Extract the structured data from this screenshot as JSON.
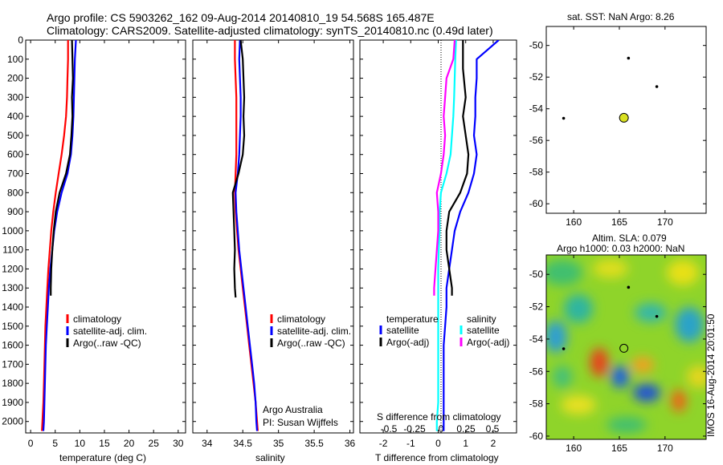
{
  "header": {
    "line1": "Argo profile: CS 5903262_162 09-Aug-2014 20140810_19 54.568S 165.487E",
    "line2": "Climatology: CARS2009. Satellite-adjusted climatology: synTS_20140810.nc (0.49d later)"
  },
  "colors": {
    "climatology": "#ff0000",
    "satellite": "#0000ff",
    "argo": "#000000",
    "satellite_salinity": "#00ffff",
    "argo_salinity": "#ff00ff",
    "marker": "#d9e021"
  },
  "chart_data": [
    {
      "id": "temperature",
      "type": "line",
      "xlabel": "temperature (deg C)",
      "ylabel": "",
      "xlim": [
        -1,
        31.5
      ],
      "ylim": [
        2060,
        0
      ],
      "xticks": [
        0,
        5,
        10,
        15,
        20,
        25,
        30
      ],
      "yticks": [
        0,
        100,
        200,
        300,
        400,
        500,
        600,
        700,
        800,
        900,
        1000,
        1100,
        1200,
        1300,
        1400,
        1500,
        1600,
        1700,
        1800,
        1900,
        2000
      ],
      "legend": [
        "climatology",
        "satellite-adj. clim.",
        "Argo(..raw -QC)"
      ],
      "series": [
        {
          "name": "climatology",
          "color": "#ff0000",
          "points": [
            [
              7.6,
              0
            ],
            [
              7.6,
              100
            ],
            [
              7.5,
              200
            ],
            [
              7.4,
              300
            ],
            [
              7.2,
              400
            ],
            [
              6.8,
              500
            ],
            [
              6.3,
              600
            ],
            [
              5.7,
              700
            ],
            [
              5.1,
              800
            ],
            [
              4.6,
              900
            ],
            [
              4.2,
              1000
            ],
            [
              3.9,
              1100
            ],
            [
              3.6,
              1200
            ],
            [
              3.4,
              1300
            ],
            [
              3.2,
              1400
            ],
            [
              3.0,
              1500
            ],
            [
              2.9,
              1600
            ],
            [
              2.8,
              1700
            ],
            [
              2.7,
              1800
            ],
            [
              2.6,
              1900
            ],
            [
              2.4,
              2000
            ],
            [
              2.3,
              2050
            ]
          ]
        },
        {
          "name": "satellite-adj. clim.",
          "color": "#0000ff",
          "points": [
            [
              9.2,
              0
            ],
            [
              9.0,
              100
            ],
            [
              8.9,
              200
            ],
            [
              8.8,
              300
            ],
            [
              8.7,
              400
            ],
            [
              8.5,
              500
            ],
            [
              8.2,
              600
            ],
            [
              7.5,
              700
            ],
            [
              6.3,
              800
            ],
            [
              5.4,
              900
            ],
            [
              4.8,
              1000
            ],
            [
              4.4,
              1100
            ],
            [
              4.0,
              1200
            ],
            [
              3.7,
              1300
            ],
            [
              3.5,
              1400
            ],
            [
              3.3,
              1500
            ],
            [
              3.1,
              1600
            ],
            [
              3.0,
              1700
            ],
            [
              2.9,
              1800
            ],
            [
              2.8,
              1900
            ],
            [
              2.7,
              2000
            ],
            [
              2.6,
              2050
            ]
          ]
        },
        {
          "name": "Argo(..raw -QC)",
          "color": "#000000",
          "points": [
            [
              8.4,
              0
            ],
            [
              8.5,
              100
            ],
            [
              8.6,
              200
            ],
            [
              8.4,
              300
            ],
            [
              8.5,
              400
            ],
            [
              8.3,
              500
            ],
            [
              8.0,
              600
            ],
            [
              7.2,
              700
            ],
            [
              5.9,
              800
            ],
            [
              5.1,
              900
            ],
            [
              4.7,
              1000
            ],
            [
              4.4,
              1100
            ],
            [
              4.2,
              1200
            ],
            [
              4.1,
              1300
            ],
            [
              4.1,
              1340
            ]
          ]
        }
      ],
      "annotations": []
    },
    {
      "id": "salinity",
      "type": "line",
      "xlabel": "salinity",
      "ylabel": "",
      "xlim": [
        33.8,
        36.05
      ],
      "ylim": [
        2060,
        0
      ],
      "xticks": [
        34,
        34.5,
        35,
        35.5,
        36
      ],
      "xtick_labels": [
        "34",
        "34.5",
        "35",
        "35.5",
        "36"
      ],
      "legend": [
        "climatology",
        "satellite-adj. clim.",
        "Argo(..raw -QC)"
      ],
      "series": [
        {
          "name": "climatology",
          "color": "#ff0000",
          "points": [
            [
              34.39,
              0
            ],
            [
              34.39,
              100
            ],
            [
              34.4,
              200
            ],
            [
              34.41,
              300
            ],
            [
              34.41,
              400
            ],
            [
              34.41,
              500
            ],
            [
              34.41,
              600
            ],
            [
              34.4,
              700
            ],
            [
              34.39,
              800
            ],
            [
              34.4,
              900
            ],
            [
              34.42,
              1000
            ],
            [
              34.44,
              1100
            ],
            [
              34.47,
              1200
            ],
            [
              34.5,
              1300
            ],
            [
              34.53,
              1400
            ],
            [
              34.56,
              1500
            ],
            [
              34.59,
              1600
            ],
            [
              34.62,
              1700
            ],
            [
              34.65,
              1800
            ],
            [
              34.68,
              1900
            ],
            [
              34.7,
              2000
            ],
            [
              34.71,
              2050
            ]
          ]
        },
        {
          "name": "satellite-adj. clim.",
          "color": "#0000ff",
          "points": [
            [
              34.46,
              0
            ],
            [
              34.45,
              100
            ],
            [
              34.46,
              200
            ],
            [
              34.47,
              300
            ],
            [
              34.47,
              400
            ],
            [
              34.46,
              500
            ],
            [
              34.45,
              600
            ],
            [
              34.43,
              700
            ],
            [
              34.4,
              800
            ],
            [
              34.41,
              900
            ],
            [
              34.43,
              1000
            ],
            [
              34.45,
              1100
            ],
            [
              34.48,
              1200
            ],
            [
              34.51,
              1300
            ],
            [
              34.54,
              1400
            ],
            [
              34.57,
              1500
            ],
            [
              34.6,
              1600
            ],
            [
              34.63,
              1700
            ],
            [
              34.66,
              1800
            ],
            [
              34.68,
              1900
            ],
            [
              34.69,
              2000
            ],
            [
              34.7,
              2050
            ]
          ]
        },
        {
          "name": "Argo(..raw -QC)",
          "color": "#000000",
          "points": [
            [
              34.47,
              0
            ],
            [
              34.5,
              100
            ],
            [
              34.51,
              200
            ],
            [
              34.52,
              300
            ],
            [
              34.51,
              400
            ],
            [
              34.52,
              500
            ],
            [
              34.5,
              600
            ],
            [
              34.44,
              700
            ],
            [
              34.36,
              800
            ],
            [
              34.37,
              900
            ],
            [
              34.38,
              1000
            ],
            [
              34.39,
              1100
            ],
            [
              34.38,
              1200
            ],
            [
              34.39,
              1300
            ],
            [
              34.4,
              1350
            ]
          ]
        }
      ],
      "annotations": [
        "Argo Australia",
        "PI: Susan Wijffels"
      ]
    },
    {
      "id": "differences",
      "type": "line",
      "xlabel": "T difference from climatology",
      "xlabel_top": "S difference from climatology",
      "xlim": [
        -2.85,
        2.85
      ],
      "ylim": [
        2060,
        0
      ],
      "xticks": [
        -2,
        -1,
        0,
        1,
        2
      ],
      "xticks_top": [
        -0.5,
        -0.25,
        0,
        0.25,
        0.5
      ],
      "xticks_top_labels": [
        "-0.5",
        "-0.25",
        "0",
        "0.25",
        "0.5"
      ],
      "legend_groups": [
        {
          "title": "temperature",
          "entries": [
            "satellite",
            "Argo(-adj)"
          ]
        },
        {
          "title": "salinity",
          "entries": [
            "satellite",
            "Argo(-adj)"
          ]
        }
      ],
      "series": [
        {
          "name": "satellite",
          "group": "temperature",
          "color": "#0000ff",
          "points": [
            [
              2.2,
              0
            ],
            [
              1.8,
              50
            ],
            [
              1.4,
              100
            ],
            [
              1.4,
              200
            ],
            [
              1.35,
              300
            ],
            [
              1.35,
              400
            ],
            [
              1.3,
              500
            ],
            [
              1.4,
              600
            ],
            [
              1.3,
              700
            ],
            [
              1.1,
              800
            ],
            [
              0.8,
              900
            ],
            [
              0.6,
              1000
            ],
            [
              0.5,
              1100
            ],
            [
              0.4,
              1200
            ],
            [
              0.3,
              1300
            ],
            [
              0.3,
              1400
            ],
            [
              0.25,
              1500
            ],
            [
              0.2,
              1600
            ],
            [
              0.2,
              1700
            ],
            [
              0.2,
              1800
            ],
            [
              0.2,
              1900
            ],
            [
              0.2,
              2000
            ],
            [
              0.2,
              2050
            ]
          ]
        },
        {
          "name": "Argo(-adj)",
          "group": "temperature",
          "color": "#000000",
          "points": [
            [
              0.9,
              0
            ],
            [
              0.9,
              150
            ],
            [
              1.0,
              300
            ],
            [
              0.9,
              400
            ],
            [
              1.0,
              500
            ],
            [
              1.1,
              600
            ],
            [
              1.05,
              700
            ],
            [
              0.8,
              800
            ],
            [
              0.4,
              900
            ],
            [
              0.3,
              1000
            ],
            [
              0.3,
              1100
            ],
            [
              0.4,
              1200
            ],
            [
              0.5,
              1300
            ],
            [
              0.5,
              1340
            ]
          ]
        },
        {
          "name": "satellite",
          "group": "salinity",
          "color": "#00ffff",
          "points": [
            [
              0.65,
              0
            ],
            [
              0.62,
              100
            ],
            [
              0.6,
              200
            ],
            [
              0.58,
              300
            ],
            [
              0.55,
              400
            ],
            [
              0.5,
              500
            ],
            [
              0.45,
              600
            ],
            [
              0.3,
              700
            ],
            [
              0.1,
              800
            ],
            [
              0.05,
              900
            ],
            [
              0.05,
              1000
            ],
            [
              0.02,
              1100
            ],
            [
              0.0,
              1200
            ],
            [
              0.0,
              1300
            ],
            [
              0.0,
              1400
            ],
            [
              0.0,
              1500
            ],
            [
              0.0,
              1600
            ],
            [
              0.0,
              1700
            ],
            [
              0.0,
              1800
            ],
            [
              0.0,
              1900
            ],
            [
              -0.05,
              2000
            ],
            [
              -0.05,
              2050
            ]
          ]
        },
        {
          "name": "Argo(-adj)",
          "group": "salinity",
          "color": "#ff00ff",
          "points": [
            [
              0.6,
              0
            ],
            [
              0.55,
              100
            ],
            [
              0.3,
              200
            ],
            [
              0.25,
              300
            ],
            [
              0.2,
              400
            ],
            [
              0.25,
              500
            ],
            [
              0.2,
              600
            ],
            [
              0.1,
              700
            ],
            [
              -0.05,
              800
            ],
            [
              0.0,
              900
            ],
            [
              0.0,
              1000
            ],
            [
              -0.05,
              1100
            ],
            [
              -0.1,
              1200
            ],
            [
              -0.15,
              1300
            ],
            [
              -0.15,
              1340
            ]
          ]
        }
      ]
    },
    {
      "id": "sst_map",
      "type": "scatter",
      "title": "sat. SST: NaN Argo: 8.26",
      "xlim": [
        157,
        174.5
      ],
      "ylim": [
        -60.6,
        -48.8
      ],
      "xticks": [
        160,
        165,
        170
      ],
      "yticks": [
        -50,
        -52,
        -54,
        -56,
        -58,
        -60
      ],
      "points": [
        {
          "lon": 165.5,
          "lat": -54.57,
          "kind": "profile"
        }
      ],
      "other_floats": [
        {
          "lon": 166.0,
          "lat": -50.8
        },
        {
          "lon": 169.1,
          "lat": -52.6
        },
        {
          "lon": 158.9,
          "lat": -54.6
        }
      ]
    },
    {
      "id": "sla_map",
      "type": "heatmap",
      "title_line1": "Altim. SLA: 0.079",
      "title_line2": "Argo h1000: 0.03 h2000: NaN",
      "xlim": [
        157,
        174.5
      ],
      "ylim": [
        -60.2,
        -48.8
      ],
      "xticks": [
        160,
        165,
        170
      ],
      "yticks": [
        -50,
        -52,
        -54,
        -56,
        -58,
        -60
      ],
      "points": [
        {
          "lon": 165.5,
          "lat": -54.57,
          "kind": "profile"
        }
      ],
      "other_floats": [
        {
          "lon": 166.0,
          "lat": -50.8
        },
        {
          "lon": 169.1,
          "lat": -52.6
        },
        {
          "lon": 158.9,
          "lat": -54.6
        }
      ],
      "side_label": "IMOS 16-Aug-2014 20:01:50"
    }
  ]
}
